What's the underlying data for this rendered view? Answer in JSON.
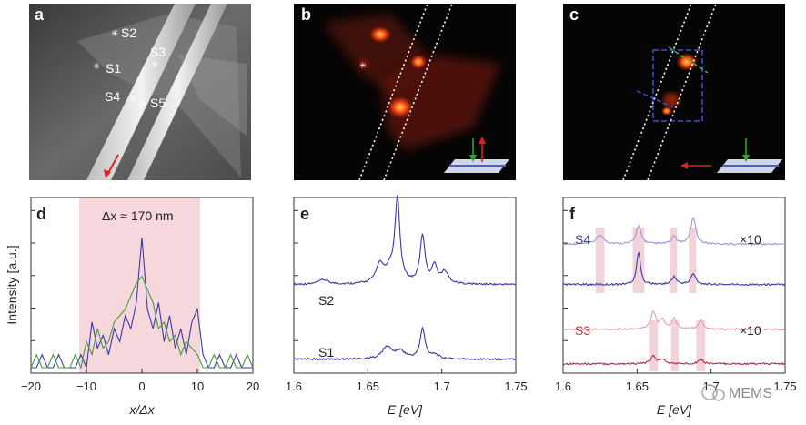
{
  "panels": {
    "a": {
      "label": "a",
      "sites": [
        "S1",
        "S2",
        "S3",
        "S4",
        "S5"
      ]
    },
    "b": {
      "label": "b"
    },
    "c": {
      "label": "c"
    },
    "d": {
      "label": "d",
      "annotation": "Δx ≈ 170 nm",
      "ylabel": "Intensity [a.u.]",
      "xlabel": "x/Δx"
    },
    "e": {
      "label": "e",
      "xlabel": "E [eV]",
      "series_labels": [
        "S2",
        "S1"
      ]
    },
    "f": {
      "label": "f",
      "xlabel": "E [eV]",
      "series_labels": [
        "S4",
        "S3"
      ],
      "multipliers": [
        "×10",
        "×10"
      ]
    }
  },
  "watermark": "MEMS",
  "colors": {
    "blue": "#3a3aa8",
    "green": "#4a9a3a",
    "red": "#c0303a",
    "pinkband": "#f6d7dc"
  },
  "chart_data": [
    {
      "type": "line",
      "panel": "d",
      "xlabel": "x/Δx",
      "ylabel": "Intensity [a.u.]",
      "xlim": [
        -20,
        20
      ],
      "xticks": [
        -20,
        -10,
        0,
        10,
        20
      ],
      "shaded_range": [
        -11,
        11
      ],
      "series": [
        {
          "color": "blue",
          "x": [
            -20,
            -19,
            -18,
            -17,
            -16,
            -15,
            -14,
            -13,
            -12,
            -11,
            -10,
            -9,
            -8,
            -7,
            -6,
            -5,
            -4,
            -3,
            -2,
            -1,
            0,
            1,
            2,
            3,
            4,
            5,
            6,
            7,
            8,
            9,
            10,
            11,
            12,
            13,
            14,
            15,
            16,
            17,
            18,
            19,
            20
          ],
          "y": [
            0,
            0,
            0.1,
            0,
            0,
            0.1,
            0,
            0,
            0,
            0.1,
            0,
            0.35,
            0.15,
            0.25,
            0.1,
            0.3,
            0.2,
            0.4,
            0.3,
            0.5,
            1.0,
            0.45,
            0.3,
            0.5,
            0.2,
            0.4,
            0.15,
            0.3,
            0.1,
            0.35,
            0.45,
            0.1,
            0,
            0,
            0.1,
            0,
            0,
            0.1,
            0,
            0,
            0
          ]
        },
        {
          "color": "green",
          "x": [
            -20,
            -19,
            -18,
            -17,
            -16,
            -15,
            -14,
            -13,
            -12,
            -11,
            -10,
            -9,
            -8,
            -7,
            -6,
            -5,
            -4,
            -3,
            -2,
            -1,
            0,
            1,
            2,
            3,
            4,
            5,
            6,
            7,
            8,
            9,
            10,
            11,
            12,
            13,
            14,
            15,
            16,
            17,
            18,
            19,
            20
          ],
          "y": [
            0,
            0.1,
            0,
            0,
            0.1,
            0,
            0,
            0,
            0.1,
            0,
            0.2,
            0.1,
            0.3,
            0.15,
            0.2,
            0.35,
            0.4,
            0.45,
            0.55,
            0.65,
            0.7,
            0.6,
            0.5,
            0.3,
            0.35,
            0.2,
            0.25,
            0.1,
            0.2,
            0.15,
            0.1,
            0,
            0,
            0.1,
            0,
            0,
            0.1,
            0,
            0,
            0.1,
            0
          ]
        }
      ]
    },
    {
      "type": "line",
      "panel": "e",
      "xlabel": "E [eV]",
      "xlim": [
        1.6,
        1.75
      ],
      "xticks": [
        1.6,
        1.65,
        1.7,
        1.75
      ],
      "series": [
        {
          "name": "S2",
          "offset": 0.55,
          "peaks": [
            [
              1.62,
              0.03,
              0.004
            ],
            [
              1.658,
              0.12,
              0.003
            ],
            [
              1.67,
              0.55,
              0.002
            ],
            [
              1.665,
              0.08,
              0.004
            ],
            [
              1.687,
              0.32,
              0.002
            ],
            [
              1.695,
              0.12,
              0.002
            ],
            [
              1.702,
              0.08,
              0.003
            ]
          ]
        },
        {
          "name": "S1",
          "offset": 0.05,
          "peaks": [
            [
              1.663,
              0.08,
              0.004
            ],
            [
              1.672,
              0.05,
              0.004
            ],
            [
              1.687,
              0.2,
              0.002
            ],
            [
              1.695,
              0.03,
              0.003
            ]
          ]
        }
      ]
    },
    {
      "type": "line",
      "panel": "f",
      "xlabel": "E [eV]",
      "xlim": [
        1.6,
        1.75
      ],
      "xticks": [
        1.6,
        1.65,
        1.7,
        1.75
      ],
      "bands": [
        [
          1.622,
          1.628
        ],
        [
          1.647,
          1.655
        ],
        [
          1.672,
          1.677
        ],
        [
          1.685,
          1.69
        ]
      ],
      "bands_lower": [
        [
          1.658,
          1.664
        ],
        [
          1.673,
          1.678
        ],
        [
          1.69,
          1.696
        ]
      ],
      "series": [
        {
          "name": "S4 ×10",
          "color": "lightblue",
          "offset": 0.82,
          "peaks": [
            [
              1.625,
              0.06,
              0.003
            ],
            [
              1.651,
              0.12,
              0.002
            ],
            [
              1.675,
              0.05,
              0.002
            ],
            [
              1.688,
              0.18,
              0.002
            ]
          ]
        },
        {
          "name": "S4",
          "color": "blue",
          "offset": 0.55,
          "peaks": [
            [
              1.651,
              0.22,
              0.0015
            ],
            [
              1.675,
              0.05,
              0.002
            ],
            [
              1.688,
              0.07,
              0.002
            ]
          ]
        },
        {
          "name": "S3 ×10",
          "color": "pink",
          "offset": 0.25,
          "peaks": [
            [
              1.661,
              0.12,
              0.002
            ],
            [
              1.667,
              0.06,
              0.002
            ],
            [
              1.675,
              0.07,
              0.002
            ],
            [
              1.693,
              0.06,
              0.002
            ]
          ]
        },
        {
          "name": "S3",
          "color": "red",
          "offset": 0.02,
          "peaks": [
            [
              1.661,
              0.05,
              0.002
            ],
            [
              1.667,
              0.03,
              0.002
            ],
            [
              1.693,
              0.03,
              0.002
            ]
          ]
        }
      ]
    }
  ]
}
